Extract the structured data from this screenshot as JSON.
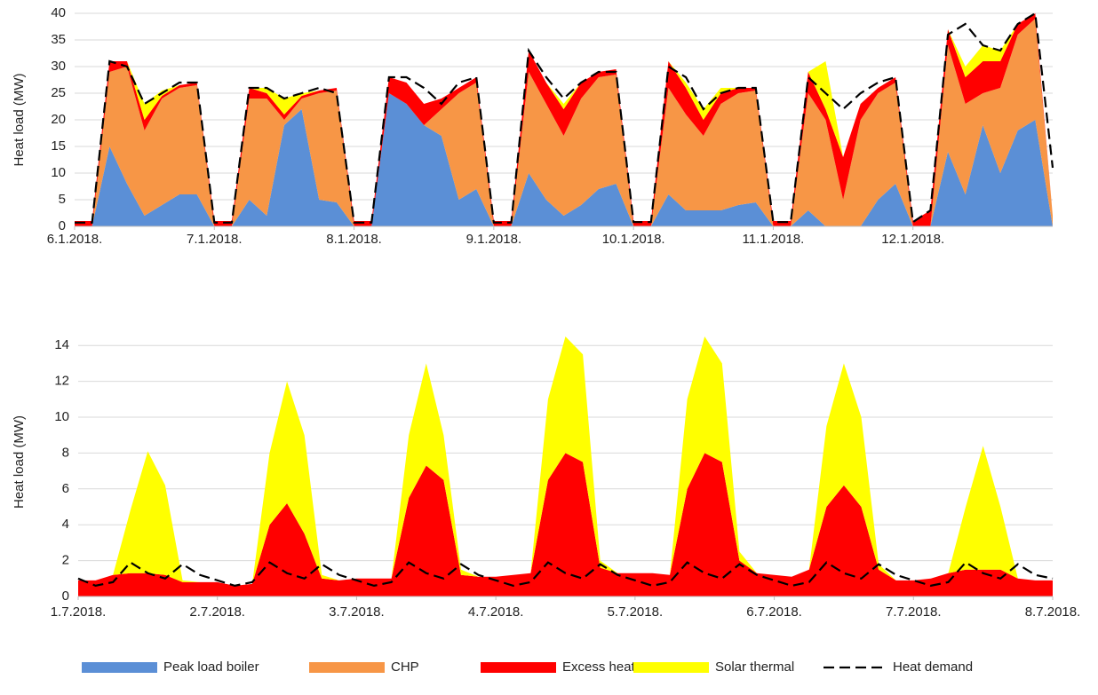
{
  "chart_data": [
    {
      "type": "area",
      "y_label": "Heat load (MW)",
      "x": [
        0,
        3,
        6,
        9,
        12,
        15,
        18,
        21,
        24,
        27,
        30,
        33,
        36,
        39,
        42,
        45,
        48,
        51,
        54,
        57,
        60,
        63,
        66,
        69,
        72,
        75,
        78,
        81,
        84,
        87,
        90,
        93,
        96,
        99,
        102,
        105,
        108,
        111,
        114,
        117,
        120,
        123,
        126,
        129,
        132,
        135,
        138,
        141,
        144,
        147,
        150,
        153,
        156,
        159,
        162,
        165,
        168
      ],
      "xlim": [
        0,
        168
      ],
      "xticks": [
        {
          "value": 0,
          "label": "6.1.2018."
        },
        {
          "value": 24,
          "label": "7.1.2018."
        },
        {
          "value": 48,
          "label": "8.1.2018."
        },
        {
          "value": 72,
          "label": "9.1.2018."
        },
        {
          "value": 96,
          "label": "10.1.2018."
        },
        {
          "value": 120,
          "label": "11.1.2018."
        },
        {
          "value": 144,
          "label": "12.1.2018."
        }
      ],
      "ylim": [
        0,
        40
      ],
      "yticks": [
        0,
        5,
        10,
        15,
        20,
        25,
        30,
        35,
        40
      ],
      "grid": true,
      "series": [
        {
          "name": "Peak load boiler",
          "color": "#5b8fd6",
          "kind": "area",
          "values": [
            0,
            0,
            15,
            8,
            2,
            4,
            6,
            6,
            0,
            0,
            5,
            2,
            19,
            22,
            5,
            4.5,
            0,
            0,
            25,
            23,
            19,
            17,
            5,
            7,
            0,
            0,
            10,
            5,
            2,
            4,
            7,
            8,
            0,
            0,
            6,
            3,
            3,
            3,
            4,
            4.5,
            0,
            0,
            3,
            0,
            0,
            0,
            5,
            8,
            0,
            0,
            14,
            6,
            19,
            10,
            18,
            20,
            0
          ]
        },
        {
          "name": "CHP",
          "color": "#f79646",
          "kind": "area",
          "values": [
            0,
            0,
            14,
            22,
            16,
            20,
            20,
            20.5,
            0,
            0,
            19,
            22,
            1,
            2,
            20,
            21,
            0,
            0,
            0,
            0,
            0,
            5,
            20,
            20,
            0,
            0,
            19,
            18,
            15,
            20,
            21,
            20.5,
            0,
            0,
            20,
            18,
            14,
            20,
            21,
            21,
            0,
            0,
            22,
            20,
            5,
            20,
            20,
            19,
            0,
            0,
            20,
            17,
            6,
            16,
            18,
            19,
            2
          ]
        },
        {
          "name": "Excess heat",
          "color": "#ff0000",
          "kind": "area",
          "values": [
            1,
            1,
            2,
            1,
            2,
            0.5,
            0.5,
            0.5,
            1,
            1,
            2,
            1,
            1,
            0.5,
            0.5,
            0.5,
            1,
            1,
            3,
            4,
            4,
            2,
            1,
            1,
            1,
            1,
            4,
            4,
            5,
            3,
            1,
            1,
            1,
            1,
            5,
            5,
            3,
            2,
            1,
            0.5,
            1,
            1,
            4,
            2,
            8,
            3,
            1,
            1,
            1,
            3,
            3,
            5,
            6,
            5,
            2,
            1,
            0
          ]
        },
        {
          "name": "Solar thermal",
          "color": "#ffff00",
          "kind": "area",
          "values": [
            0,
            0,
            0,
            0,
            3,
            1,
            0,
            0,
            0,
            0,
            0,
            1,
            3,
            0.5,
            0,
            0,
            0,
            0,
            0,
            0,
            0,
            0,
            0,
            0,
            0,
            0,
            0,
            0,
            1,
            0,
            0,
            0,
            0,
            0,
            0,
            1,
            2,
            1,
            0,
            0,
            0,
            0,
            0,
            9,
            0,
            0,
            0,
            0,
            0,
            0,
            0,
            2,
            3,
            2,
            0,
            0,
            0
          ]
        },
        {
          "name": "Heat demand",
          "color": "#000000",
          "kind": "line",
          "values": [
            0.7,
            0.7,
            31,
            30,
            23,
            25,
            27,
            27,
            0.7,
            0.7,
            26,
            26,
            24,
            25,
            26,
            25,
            0.7,
            0.7,
            28,
            28,
            26,
            23,
            27,
            28,
            0.7,
            0.7,
            33,
            28,
            24,
            27,
            29,
            29,
            0.8,
            0.8,
            30,
            28,
            22,
            25,
            26,
            26,
            0.8,
            0.8,
            28,
            25,
            22,
            25,
            27,
            28,
            0.8,
            3,
            36,
            38,
            34,
            33,
            38,
            40,
            11
          ]
        }
      ]
    },
    {
      "type": "area",
      "y_label": "Heat load (MW)",
      "x": [
        0,
        3,
        6,
        9,
        12,
        15,
        18,
        21,
        24,
        27,
        30,
        33,
        36,
        39,
        42,
        45,
        48,
        51,
        54,
        57,
        60,
        63,
        66,
        69,
        72,
        75,
        78,
        81,
        84,
        87,
        90,
        93,
        96,
        99,
        102,
        105,
        108,
        111,
        114,
        117,
        120,
        123,
        126,
        129,
        132,
        135,
        138,
        141,
        144,
        147,
        150,
        153,
        156,
        159,
        162,
        165,
        168
      ],
      "xlim": [
        0,
        168
      ],
      "xticks": [
        {
          "value": 0,
          "label": "1.7.2018."
        },
        {
          "value": 24,
          "label": "2.7.2018."
        },
        {
          "value": 48,
          "label": "3.7.2018."
        },
        {
          "value": 72,
          "label": "4.7.2018."
        },
        {
          "value": 96,
          "label": "5.7.2018."
        },
        {
          "value": 120,
          "label": "6.7.2018."
        },
        {
          "value": 144,
          "label": "7.7.2018."
        },
        {
          "value": 168,
          "label": "8.7.2018."
        }
      ],
      "ylim": [
        0,
        15
      ],
      "yticks": [
        0,
        2,
        4,
        6,
        8,
        10,
        12,
        14
      ],
      "grid": true,
      "series": [
        {
          "name": "Excess heat",
          "color": "#ff0000",
          "kind": "area",
          "values": [
            0.9,
            0.9,
            1.2,
            1.3,
            1.3,
            1.2,
            0.8,
            0.8,
            0.8,
            0.6,
            0.7,
            4,
            5.2,
            3.5,
            1,
            0.9,
            1,
            1,
            1,
            5.5,
            7.3,
            6.5,
            1.2,
            1.1,
            1.1,
            1.2,
            1.3,
            6.5,
            8,
            7.5,
            1.6,
            1.3,
            1.3,
            1.3,
            1.2,
            6,
            8,
            7.5,
            2,
            1.3,
            1.2,
            1.1,
            1.5,
            5,
            6.2,
            5,
            1.5,
            0.9,
            0.9,
            1,
            1.3,
            1.5,
            1.5,
            1.5,
            1,
            0.9,
            0.9
          ]
        },
        {
          "name": "Solar thermal",
          "color": "#ffff00",
          "kind": "area",
          "values": [
            0,
            0,
            0,
            3.5,
            6.8,
            5,
            0.1,
            0,
            0,
            0,
            0,
            4,
            6.8,
            5.5,
            0.2,
            0,
            0,
            0,
            0,
            3.5,
            5.7,
            2.5,
            0.3,
            0,
            0,
            0,
            0,
            4.5,
            6.5,
            6,
            0.4,
            0,
            0,
            0,
            0,
            5,
            6.5,
            5.5,
            0.5,
            0,
            0,
            0,
            0,
            4.5,
            6.8,
            5,
            0.3,
            0,
            0,
            0,
            0,
            3.5,
            6.9,
            3.5,
            0,
            0,
            0
          ]
        },
        {
          "name": "Heat demand",
          "color": "#000000",
          "kind": "line",
          "values": [
            1.0,
            0.6,
            0.8,
            1.9,
            1.3,
            1.0,
            1.8,
            1.2,
            0.9,
            0.6,
            0.8,
            1.9,
            1.3,
            1.0,
            1.8,
            1.2,
            0.9,
            0.6,
            0.8,
            1.9,
            1.3,
            1.0,
            1.8,
            1.2,
            0.9,
            0.6,
            0.8,
            1.9,
            1.3,
            1.0,
            1.8,
            1.2,
            0.9,
            0.6,
            0.8,
            1.9,
            1.3,
            1.0,
            1.8,
            1.2,
            0.9,
            0.6,
            0.8,
            1.9,
            1.3,
            1.0,
            1.8,
            1.2,
            0.9,
            0.6,
            0.8,
            1.9,
            1.3,
            1.0,
            1.8,
            1.2,
            1.0
          ]
        }
      ]
    }
  ]
}
